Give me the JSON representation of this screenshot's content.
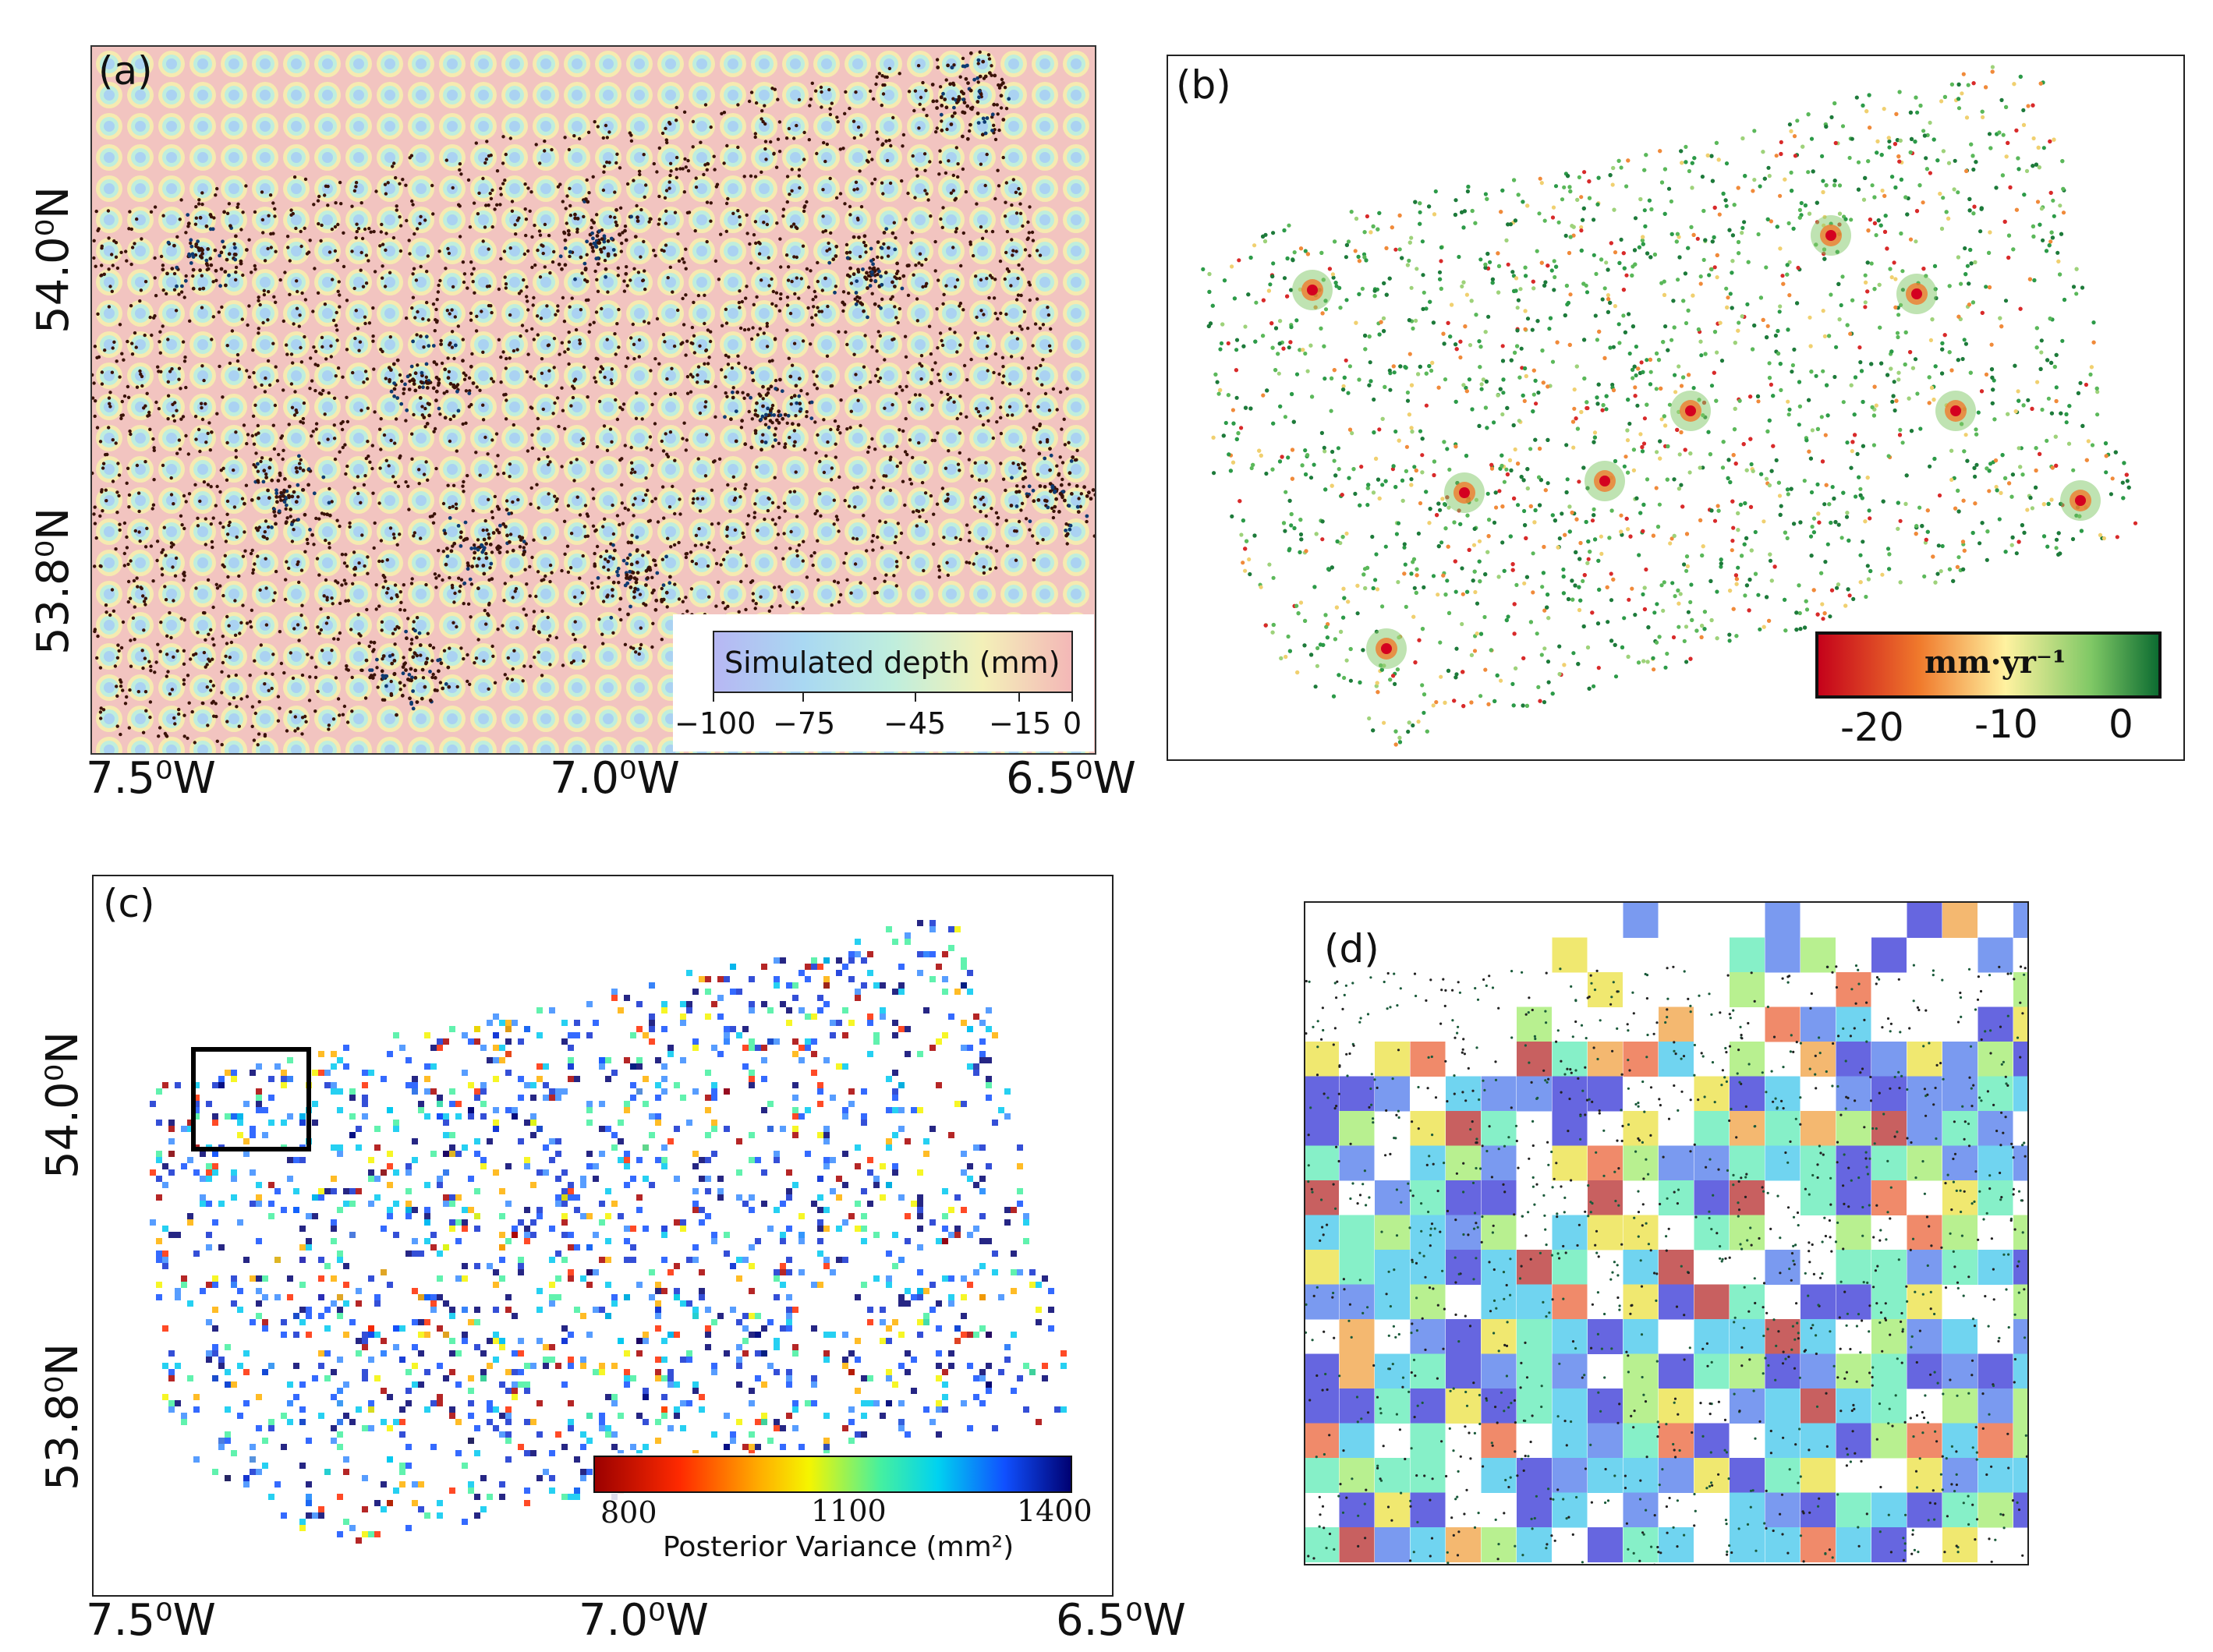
{
  "figure": {
    "panels": {
      "a": {
        "label": "(a)",
        "legend_title": "Simulated depth (mm)",
        "legend_ticks": [
          "−100",
          "−75",
          "−45",
          "−15",
          "0"
        ],
        "x_ticks": [
          "7.5⁰W",
          "7.0⁰W",
          "6.5⁰W"
        ],
        "y_ticks": [
          "54.0⁰N",
          "53.8⁰N"
        ]
      },
      "b": {
        "label": "(b)",
        "colorbar_title": "mm·yr⁻¹",
        "colorbar_ticks": [
          "-20",
          "-10",
          "0"
        ]
      },
      "c": {
        "label": "(c)",
        "colorbar_title": "Posterior Variance (mm²)",
        "colorbar_ticks": [
          "800",
          "1100",
          "1400"
        ],
        "x_ticks": [
          "7.5⁰W",
          "7.0⁰W",
          "6.5⁰W"
        ],
        "y_ticks": [
          "54.0⁰N",
          "53.8⁰N"
        ]
      },
      "d": {
        "label": "(d)"
      }
    },
    "colors": {
      "a_background": "#f2c4c0",
      "a_points": "#3a1208",
      "b_red": "#c8102e",
      "b_green": "#1d7a3a",
      "c_low": "#a80000",
      "c_high": "#00006e"
    }
  }
}
